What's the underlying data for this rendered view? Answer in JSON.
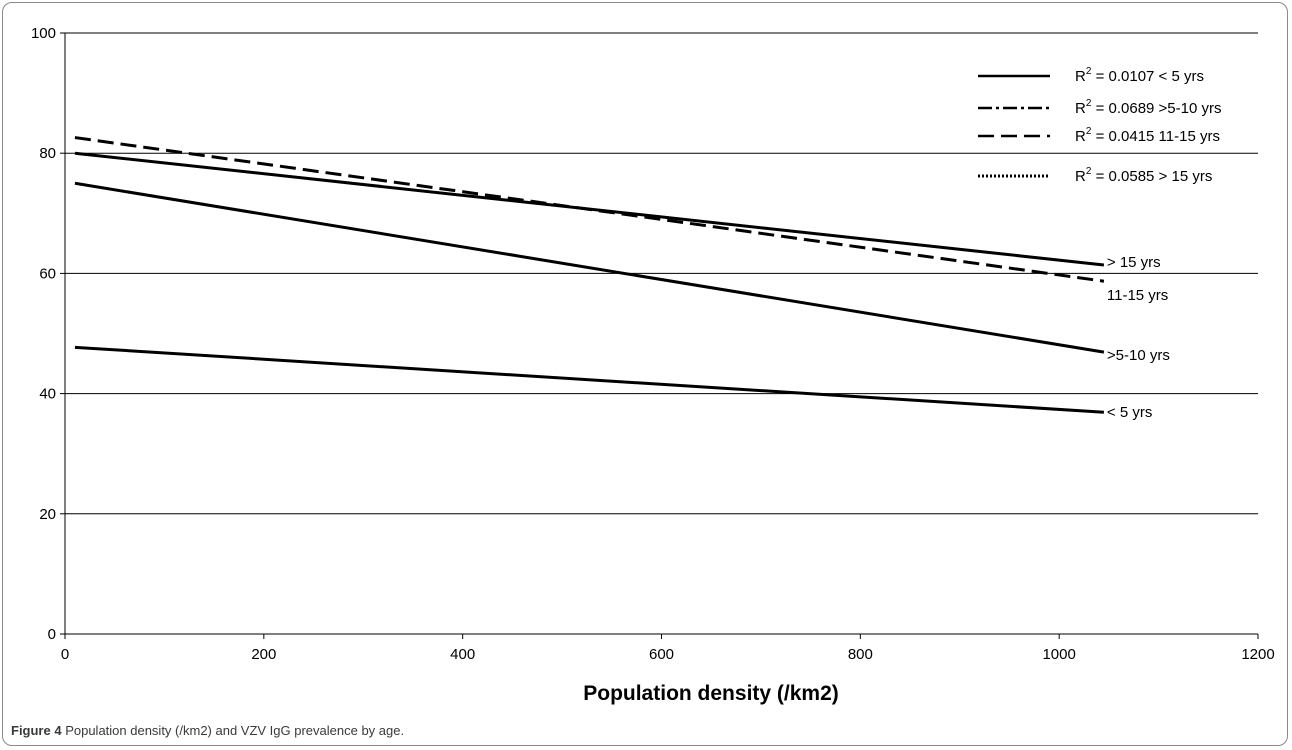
{
  "chart_data": {
    "type": "line",
    "title": "",
    "xlabel": "Population density (/km2)",
    "ylabel": "",
    "xlim": [
      0,
      1200
    ],
    "ylim": [
      0,
      100
    ],
    "x_ticks": [
      0,
      200,
      400,
      600,
      800,
      1000,
      1200
    ],
    "y_ticks": [
      0,
      20,
      40,
      60,
      80,
      100
    ],
    "grid": "horizontal",
    "legend_position": "top-right",
    "series": [
      {
        "name": "< 5 yrs",
        "r2_label": " = 0.0107 < 5 yrs",
        "end_label": "< 5 yrs",
        "dash": "solid",
        "x": [
          10,
          1045
        ],
        "y": [
          47.7,
          36.9
        ]
      },
      {
        "name": ">5-10 yrs",
        "r2_label": " = 0.0689 >5-10 yrs",
        "end_label": ">5-10 yrs",
        "dash": "dashdot",
        "x": [
          10,
          1045
        ],
        "y": [
          75.0,
          46.9
        ]
      },
      {
        "name": "11-15 yrs",
        "r2_label": " = 0.0415 11-15 yrs",
        "end_label": "11-15 yrs",
        "dash": "dashed",
        "x": [
          10,
          1045
        ],
        "y": [
          82.6,
          58.7
        ]
      },
      {
        "name": "> 15 yrs",
        "r2_label": " = 0.0585 > 15 yrs",
        "end_label": "> 15 yrs",
        "dash": "dotted",
        "x": [
          10,
          1045
        ],
        "y": [
          80.0,
          61.4
        ]
      }
    ]
  },
  "caption": {
    "label": "Figure 4",
    "text": " Population density (/km2) and VZV IgG prevalence by age",
    "period": "."
  }
}
